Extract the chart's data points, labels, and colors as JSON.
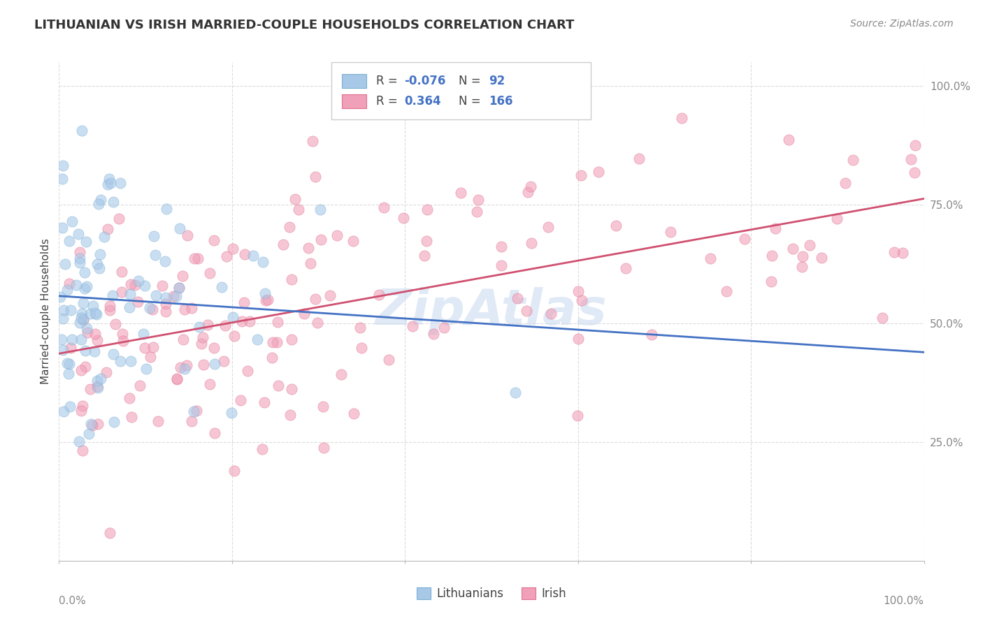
{
  "title": "LITHUANIAN VS IRISH MARRIED-COUPLE HOUSEHOLDS CORRELATION CHART",
  "source": "Source: ZipAtlas.com",
  "ylabel": "Married-couple Households",
  "legend_r_blue": "-0.076",
  "legend_n_blue": "92",
  "legend_r_pink": "0.364",
  "legend_n_pink": "166",
  "blue_face": "#a8c8e8",
  "blue_edge": "#7aafd4",
  "pink_face": "#f0a0b8",
  "pink_edge": "#e07090",
  "blue_line_color": "#4472C4",
  "pink_line_color": "#D05070",
  "grid_color": "#d8d8d8",
  "text_color": "#444444",
  "tick_color": "#888888",
  "watermark_color": "#c8d8f0",
  "title_color": "#333333",
  "source_color": "#888888",
  "r_value_color": "#4472C4",
  "legend_box_color": "#cccccc",
  "scatter_alpha": 0.6,
  "scatter_size": 120,
  "line_width": 2.0
}
